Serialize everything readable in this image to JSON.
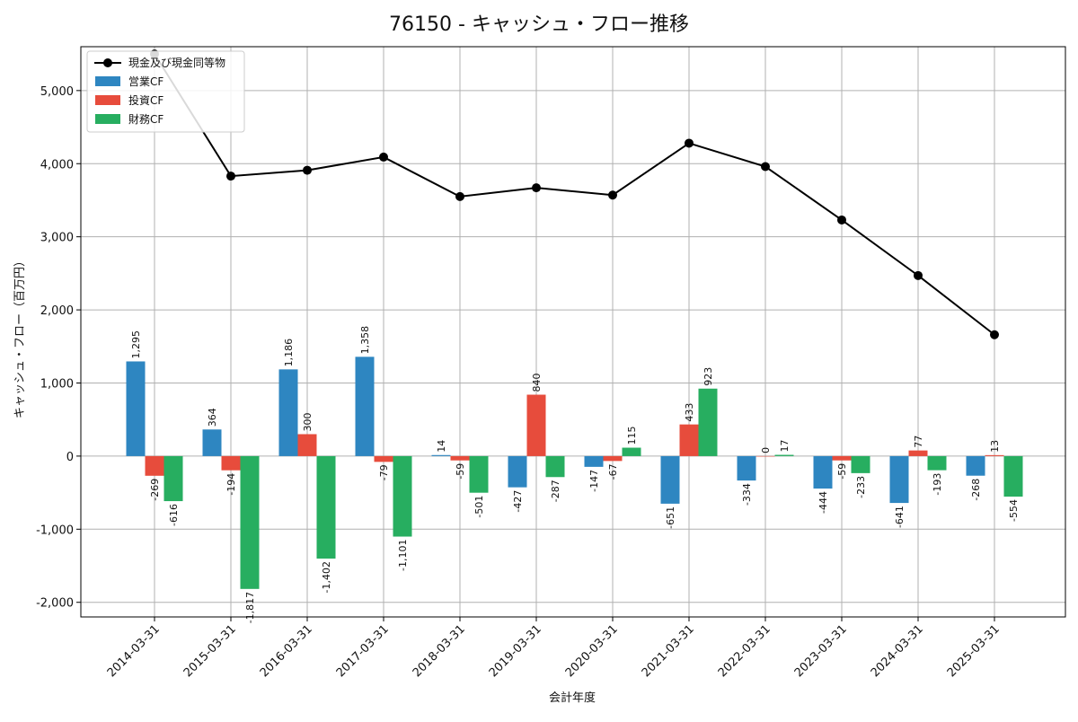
{
  "chart_data": {
    "type": "bar",
    "title": "76150 - キャッシュ・フロー推移",
    "xlabel": "会計年度",
    "ylabel": "キャッシュ・フロー（百万円）",
    "categories": [
      "2014-03-31",
      "2015-03-31",
      "2016-03-31",
      "2017-03-31",
      "2018-03-31",
      "2019-03-31",
      "2020-03-31",
      "2021-03-31",
      "2022-03-31",
      "2023-03-31",
      "2024-03-31",
      "2025-03-31"
    ],
    "ylim": [
      -2200,
      5600
    ],
    "yticks": [
      -2000,
      -1000,
      0,
      1000,
      2000,
      3000,
      4000,
      5000
    ],
    "ytick_labels": [
      "-2,000",
      "-1,000",
      "0",
      "1,000",
      "2,000",
      "3,000",
      "4,000",
      "5,000"
    ],
    "grid": true,
    "legend_position": "top-left",
    "series": [
      {
        "name": "営業CF",
        "kind": "bar",
        "color": "#2e86c1",
        "values": [
          1295,
          364,
          1186,
          1358,
          14,
          -427,
          -147,
          -651,
          -334,
          -444,
          -641,
          -268
        ],
        "labels": [
          "1,295",
          "364",
          "1,186",
          "1,358",
          "14",
          "-427",
          "-147",
          "-651",
          "-334",
          "-444",
          "-641",
          "-268"
        ]
      },
      {
        "name": "投資CF",
        "kind": "bar",
        "color": "#e74c3c",
        "values": [
          -269,
          -194,
          300,
          -79,
          -59,
          840,
          -67,
          433,
          0,
          -59,
          77,
          13
        ],
        "labels": [
          "-269",
          "-194",
          "300",
          "-79",
          "-59",
          "840",
          "-67",
          "433",
          "0",
          "-59",
          "77",
          "13"
        ]
      },
      {
        "name": "財務CF",
        "kind": "bar",
        "color": "#27ae60",
        "values": [
          -616,
          -1817,
          -1402,
          -1101,
          -501,
          -287,
          115,
          923,
          17,
          -233,
          -193,
          -554
        ],
        "labels": [
          "-616",
          "-1,817",
          "-1,402",
          "-1,101",
          "-501",
          "-287",
          "115",
          "923",
          "17",
          "-233",
          "-193",
          "-554"
        ]
      },
      {
        "name": "現金及び現金同等物",
        "kind": "line",
        "color": "#000000",
        "values": [
          5500,
          3830,
          3910,
          4090,
          3550,
          3670,
          3570,
          4280,
          3960,
          3230,
          2470,
          1660
        ]
      }
    ]
  }
}
